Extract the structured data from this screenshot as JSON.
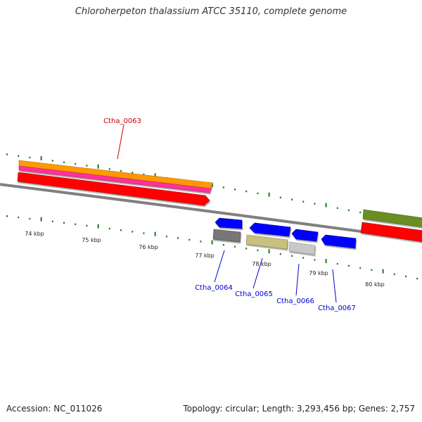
{
  "title": "Chloroherpeton thalassium ATCC 35110, complete genome",
  "footer": {
    "accession": "Accession: NC_011026",
    "summary": "Topology: circular; Length: 3,293,456 bp; Genes: 2,757"
  },
  "colors": {
    "background": "#ffffff",
    "backbone": "#808080",
    "tick": "#1a7a1a",
    "forward_label": "#cc0000",
    "reverse_label": "#0000cc",
    "axis_label": "#222222"
  },
  "axis_labels": [
    "74 kbp",
    "75 kbp",
    "76 kbp",
    "77 kbp",
    "78 kbp",
    "79 kbp",
    "80 kbp"
  ],
  "forward_features": [
    {
      "name": "orange-band",
      "color": "#ff9900"
    },
    {
      "name": "magenta-band",
      "color": "#ff3399"
    },
    {
      "name": "red-gene",
      "color": "#ff0000"
    },
    {
      "name": "olive-gene",
      "color": "#6b8e23"
    },
    {
      "name": "red-gene-right",
      "color": "#ff0000"
    }
  ],
  "reverse_features": [
    {
      "name": "blue-gene",
      "color": "#0000ff"
    },
    {
      "name": "grey-gene",
      "color": "#777777"
    },
    {
      "name": "khaki-gene",
      "color": "#c8c080"
    },
    {
      "name": "lightgrey-gene",
      "color": "#c8c8c8"
    }
  ],
  "gene_labels": [
    {
      "id": "forward-1",
      "text": "Ctha_0063",
      "strand": "forward"
    },
    {
      "id": "reverse-1",
      "text": "Ctha_0064",
      "strand": "reverse"
    },
    {
      "id": "reverse-2",
      "text": "Ctha_0065",
      "strand": "reverse"
    },
    {
      "id": "reverse-3",
      "text": "Ctha_0066",
      "strand": "reverse"
    },
    {
      "id": "reverse-4",
      "text": "Ctha_0067",
      "strand": "reverse"
    }
  ]
}
